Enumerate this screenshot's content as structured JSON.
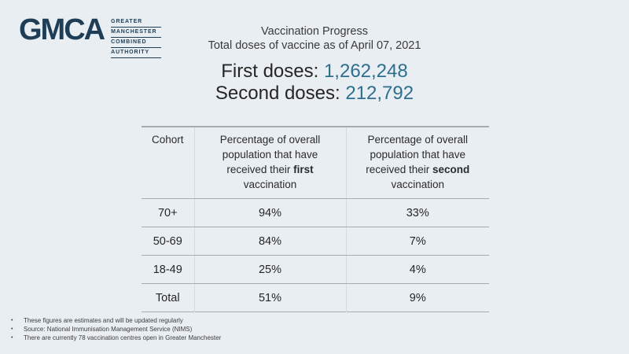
{
  "colors": {
    "background": "#e9eef2",
    "navy": "#1e3d56",
    "accent": "#2e6f8e",
    "table_line": "#a4abb1"
  },
  "logo": {
    "acronym": "GMCA",
    "words": [
      "GREATER",
      "MANCHESTER",
      "COMBINED",
      "AUTHORITY"
    ]
  },
  "header": {
    "title": "Vaccination Progress",
    "subtitle": "Total doses of vaccine as of April 07, 2021"
  },
  "doses": {
    "first_label": "First doses:",
    "first_value": "1,262,248",
    "second_label": "Second doses:",
    "second_value": "212,792"
  },
  "table": {
    "header": {
      "cohort": "Cohort",
      "prefix": "Percentage of overall population that have received their",
      "first_emphasis": "first",
      "second_emphasis": "second",
      "suffix": "vaccination"
    },
    "rows": [
      {
        "cohort": "70+",
        "first_pct": "94%",
        "second_pct": "33%"
      },
      {
        "cohort": "50-69",
        "first_pct": "84%",
        "second_pct": "7%"
      },
      {
        "cohort": "18-49",
        "first_pct": "25%",
        "second_pct": "4%"
      },
      {
        "cohort": "Total",
        "first_pct": "51%",
        "second_pct": "9%"
      }
    ]
  },
  "footer": {
    "bullet": "•",
    "items": [
      "These figures are estimates and will be updated regularly",
      "Source: National Immunisation Management Service (NIMS)",
      "There are currently 78 vaccination centres open in Greater Manchester"
    ]
  }
}
